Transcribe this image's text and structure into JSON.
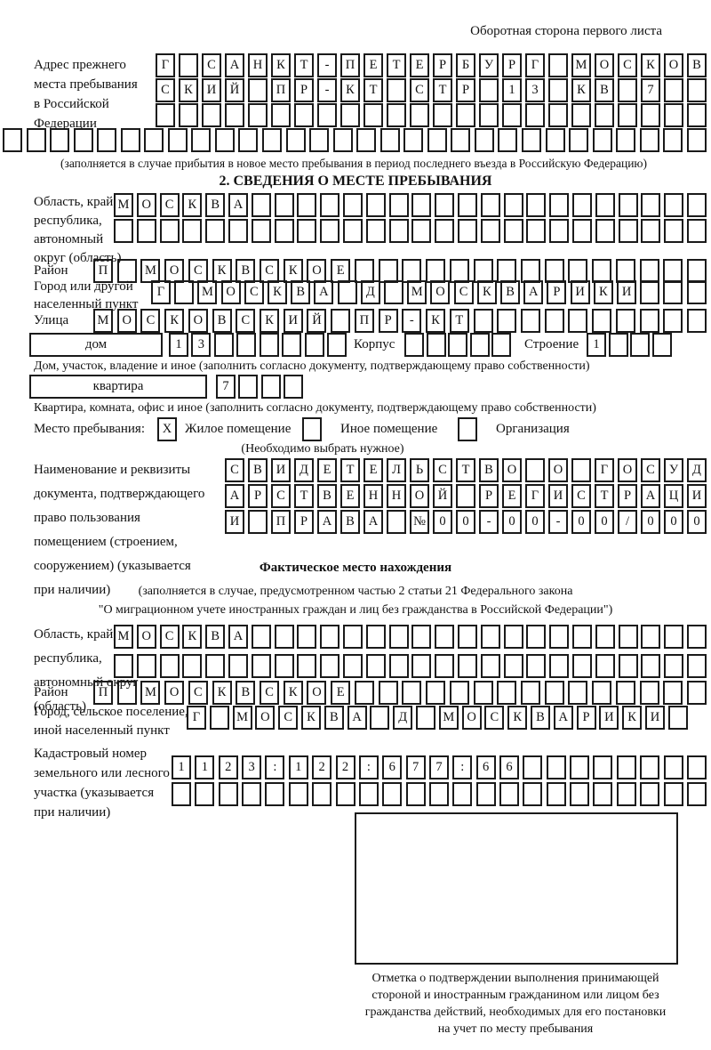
{
  "corner_note": "Оборотная сторона первого листа",
  "prev_address": {
    "label": "Адрес прежнего\nместа пребывания\nв Российской\nФедерации",
    "rows": [
      "Г САНКТ-ПЕТЕРБУРГ МОСКОВ",
      "СКИЙ ПР-КТ СТР 13 КВ 7  ",
      "                        "
    ],
    "row_full": "                              ",
    "note": "(заполняется в случае прибытия в новое место пребывания в период последнего въезда в Российскую Федерацию)"
  },
  "section2": {
    "title": "2. СВЕДЕНИЯ О МЕСТЕ ПРЕБЫВАНИЯ",
    "region": {
      "label": "Область, край,\nреспублика,\nавтономный\nокруг (область)",
      "rows": [
        "МОСКВА                    ",
        "                          "
      ]
    },
    "district": {
      "label": "Район",
      "cells": "П МОСКВСКОЕ               "
    },
    "city": {
      "label": "Город или другой\nнаселенный пункт",
      "cells": "Г МОСКВА Д МОСКВАРИКИ   "
    },
    "street": {
      "label": "Улица",
      "cells": "МОСКОВСКИЙ ПР-КТ          "
    },
    "house": {
      "label": "дом",
      "cells": "13      ",
      "korpus_label": "Корпус",
      "korpus_cells": "     ",
      "stroenie_label": "Строение",
      "stroenie_cells": "1   ",
      "note": "Дом, участок, владение и иное (заполнить согласно документу, подтверждающему право собственности)"
    },
    "apartment": {
      "label": "квартира",
      "cells": "7   ",
      "note": "Квартира, комната, офис и иное (заполнить согласно документу, подтверждающему право собственности)"
    },
    "stay_type": {
      "label": "Место пребывания:",
      "opt1_mark": "Х",
      "opt1_label": "Жилое помещение",
      "opt2_mark": " ",
      "opt2_label": "Иное помещение",
      "opt3_mark": " ",
      "opt3_label": "Организация",
      "note": "(Необходимо выбрать нужное)"
    },
    "doc": {
      "label": "Наименование и реквизиты\nдокумента, подтверждающего\nправо пользования\nпомещением (строением,\nсооружением) (указывается\nпри наличии)",
      "rows": [
        "СВИДЕТЕЛЬСТВО О ГОСУД",
        "АРСТВЕННОЙ РЕГИСТРАЦИ",
        "И ПРАВА №00-00-00/000"
      ]
    }
  },
  "actual": {
    "title": "Фактическое место нахождения",
    "note1": "(заполняется в случае, предусмотренном частью 2 статьи 21 Федерального закона",
    "note2": "\"О миграционном учете иностранных граждан и лиц без гражданства в Российской Федерации\")",
    "region": {
      "label": "Область, край,\nреспублика,\nавтономный округ\n(область)",
      "rows": [
        "МОСКВА                    ",
        "                          "
      ]
    },
    "district": {
      "label": "Район",
      "cells": "П МОСКВСКОЕ               "
    },
    "city": {
      "label": "Город, сельское поселение,\nиной населенный пункт",
      "cells": "Г МОСКВА Д МОСКВАРИКИ "
    },
    "cadastre": {
      "label": "Кадастровый номер\nземельного или лесного\nучастка (указывается\nпри наличии)",
      "rows": [
        "1123:122:677:66        ",
        "                       "
      ]
    }
  },
  "stamp": {
    "caption": "Отметка о подтверждении выполнения принимающей\nстороной и иностранным гражданином или лицом без\nгражданства действий, необходимых для его постановки\nна учет по месту пребывания"
  }
}
